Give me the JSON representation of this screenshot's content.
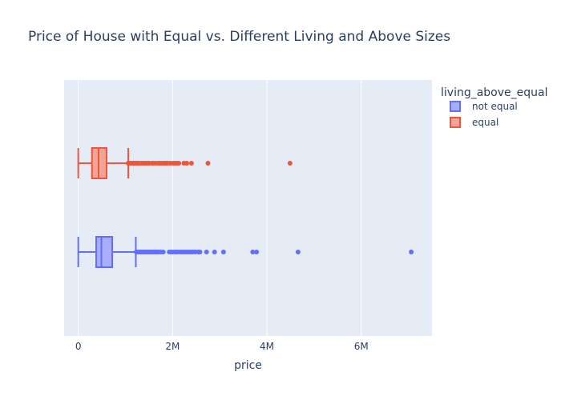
{
  "chart_data": {
    "type": "box",
    "orientation": "horizontal",
    "title": "Price of House with Equal vs. Different Living and Above Sizes",
    "xlabel": "price",
    "ylabel": "",
    "xlim": [
      -300000,
      7500000
    ],
    "x_ticks": [
      {
        "value": 0,
        "label": "0"
      },
      {
        "value": 2000000,
        "label": "2M"
      },
      {
        "value": 4000000,
        "label": "4M"
      },
      {
        "value": 6000000,
        "label": "6M"
      }
    ],
    "grid": true,
    "legend": {
      "title": "living_above_equal",
      "placement": "top-right"
    },
    "series": [
      {
        "name": "not equal",
        "color": "#636efa",
        "fill": "#a9aefc",
        "whisker_low": 0,
        "q1": 380000,
        "median": 490000,
        "q3": 720000,
        "whisker_high": 1220000,
        "outliers": [
          1230000,
          1260000,
          1290000,
          1320000,
          1350000,
          1380000,
          1410000,
          1440000,
          1470000,
          1500000,
          1530000,
          1560000,
          1590000,
          1620000,
          1650000,
          1680000,
          1710000,
          1750000,
          1800000,
          1930000,
          1970000,
          2010000,
          2060000,
          2100000,
          2150000,
          2190000,
          2230000,
          2270000,
          2310000,
          2350000,
          2390000,
          2430000,
          2480000,
          2540000,
          2580000,
          2720000,
          2890000,
          3080000,
          3700000,
          3780000,
          4660000,
          7060000
        ]
      },
      {
        "name": "equal",
        "color": "#ef553b",
        "fill": "#f4a496",
        "whisker_low": 0,
        "q1": 290000,
        "median": 430000,
        "q3": 600000,
        "whisker_high": 1060000,
        "outliers": [
          1060000,
          1090000,
          1120000,
          1150000,
          1180000,
          1210000,
          1240000,
          1270000,
          1300000,
          1340000,
          1380000,
          1420000,
          1460000,
          1500000,
          1560000,
          1600000,
          1650000,
          1700000,
          1730000,
          1770000,
          1810000,
          1850000,
          1880000,
          1900000,
          1950000,
          2010000,
          2050000,
          2090000,
          2130000,
          2240000,
          2300000,
          2400000,
          2750000,
          4490000
        ]
      }
    ]
  }
}
